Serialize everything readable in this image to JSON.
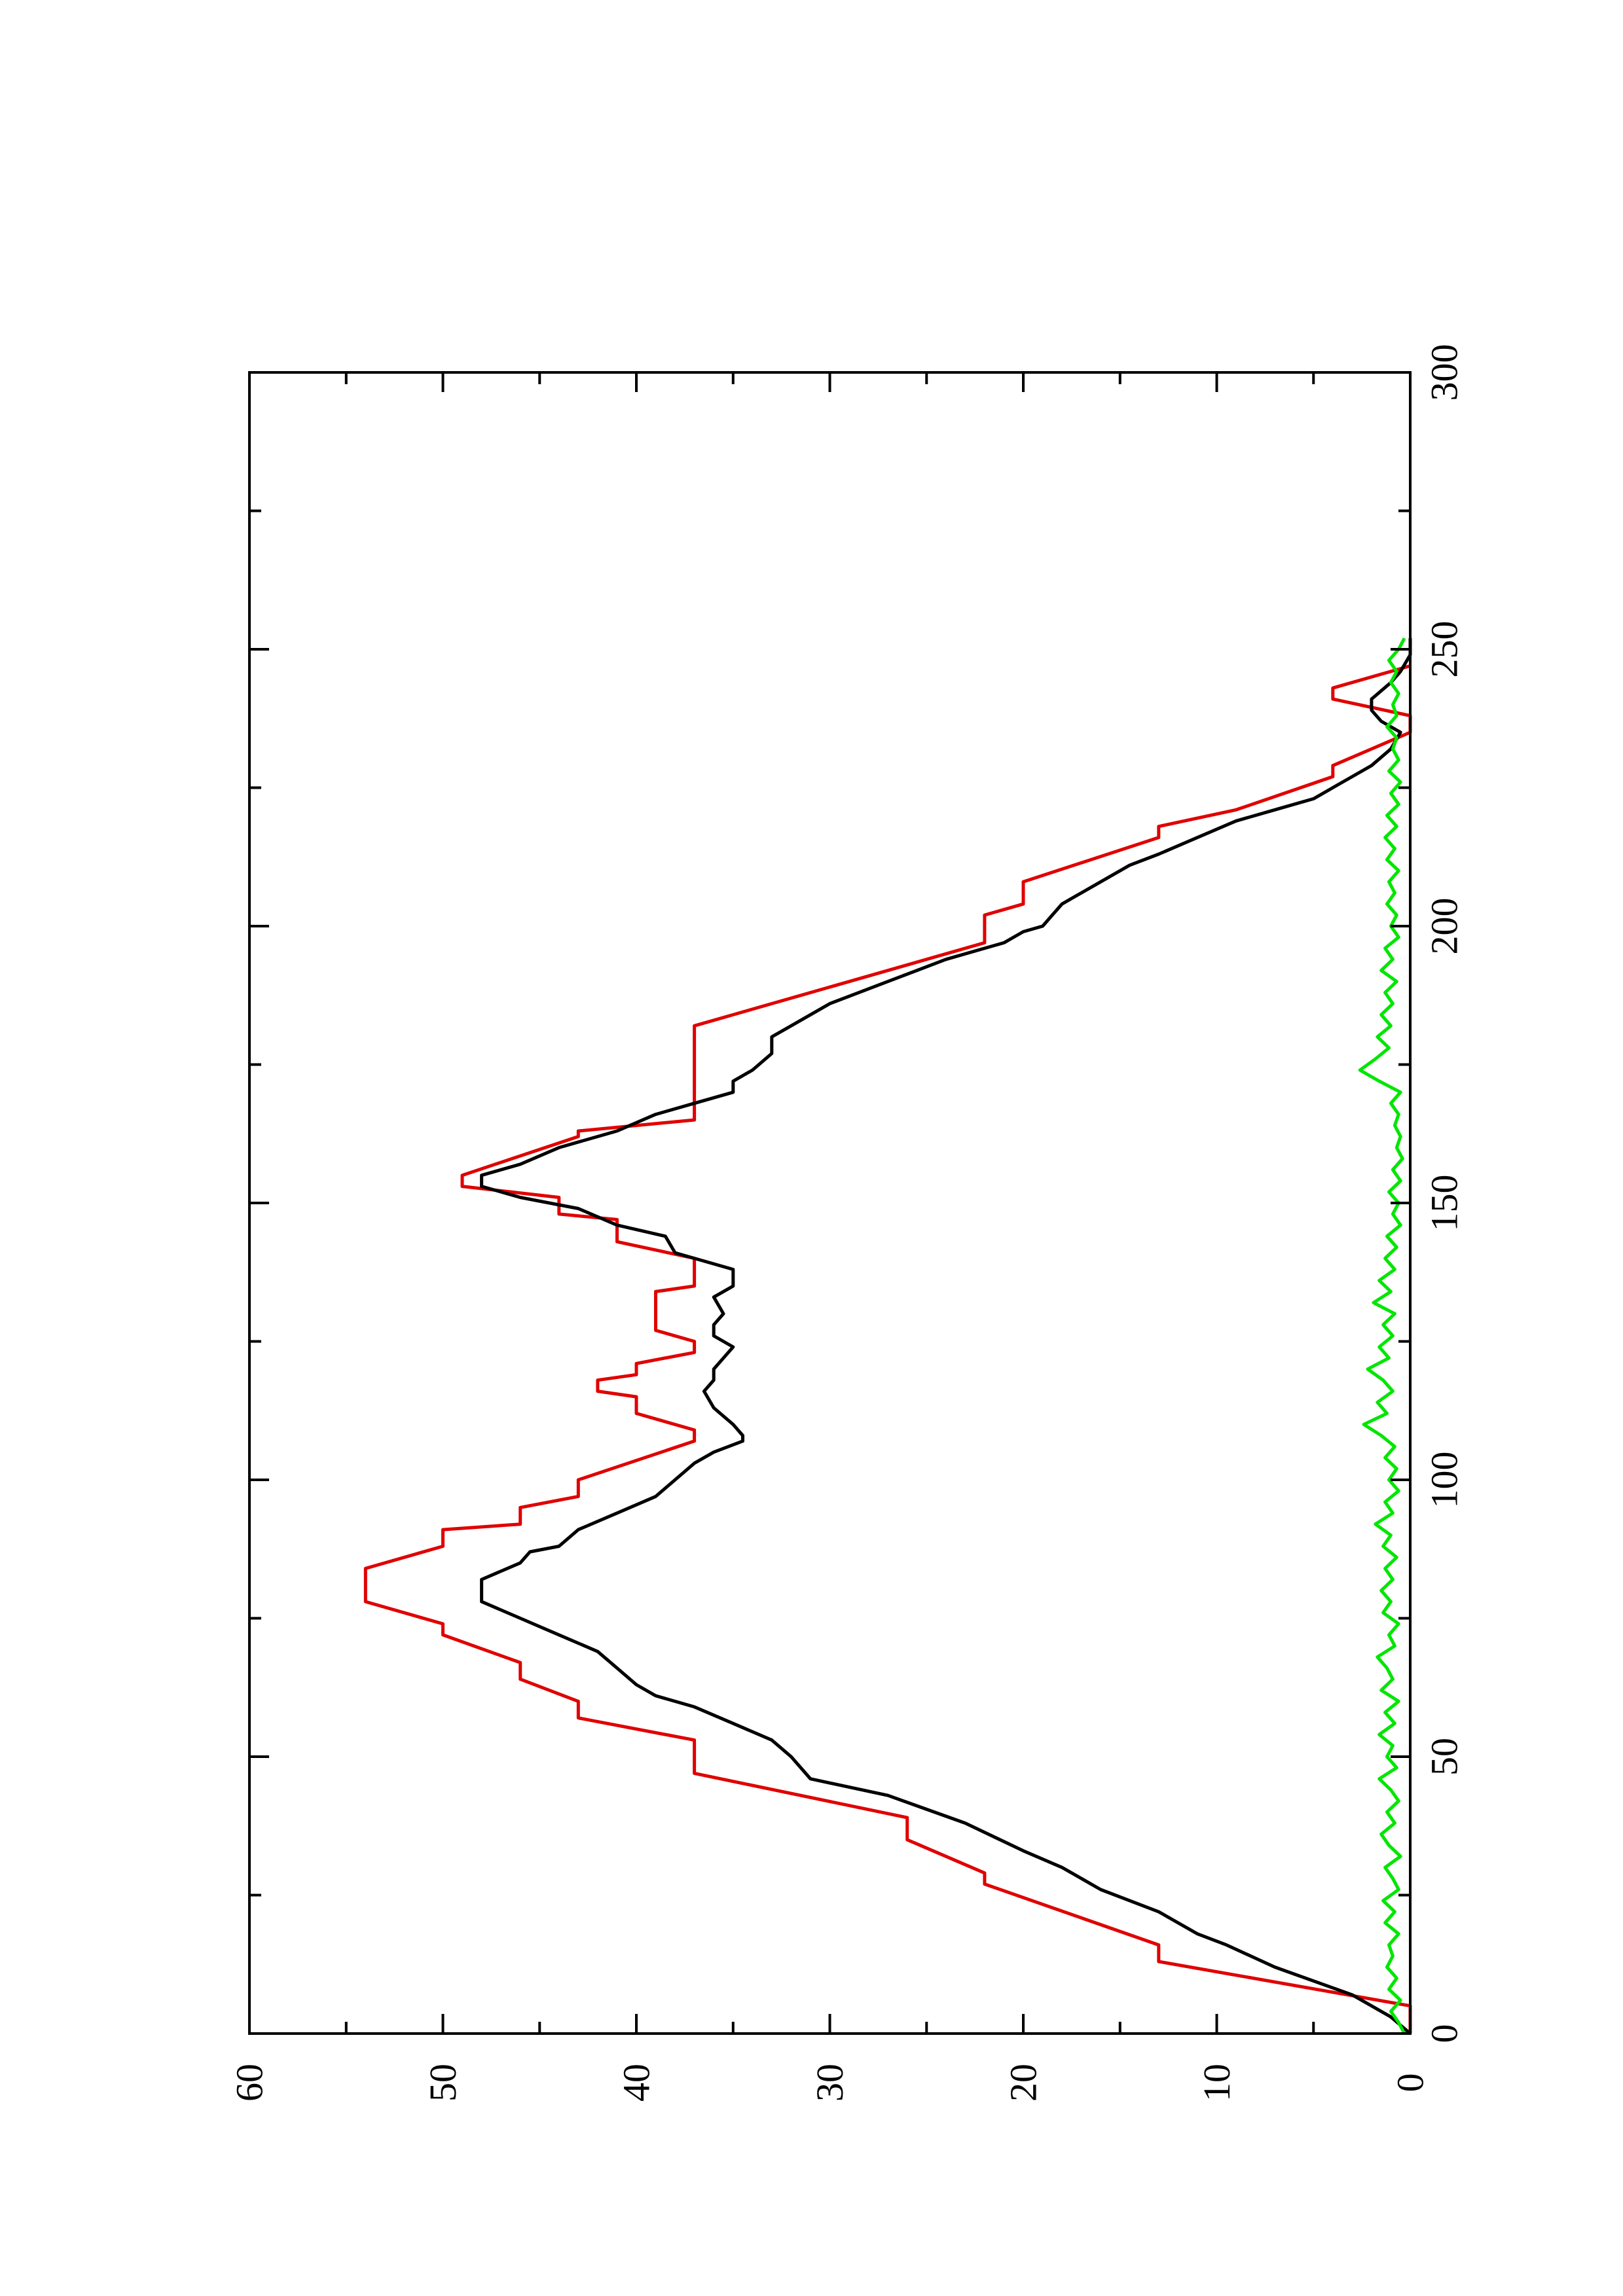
{
  "chart_data": {
    "type": "line",
    "orientation": "rotated-90-ccw",
    "xlim": [
      0,
      300
    ],
    "ylim": [
      0,
      60
    ],
    "x_ticks": [
      0,
      50,
      100,
      150,
      200,
      250,
      300
    ],
    "y_ticks": [
      0,
      10,
      20,
      30,
      40,
      50,
      60
    ],
    "x_tick_labels": [
      "0",
      "50",
      "100",
      "150",
      "200",
      "250",
      "300"
    ],
    "y_tick_labels": [
      "0",
      "10",
      "20",
      "30",
      "40",
      "50",
      "60"
    ],
    "grid": false,
    "title": "",
    "xlabel": "",
    "ylabel": "",
    "series": [
      {
        "color": "#e00000",
        "points": [
          [
            0,
            0
          ],
          [
            5,
            0
          ],
          [
            13,
            13
          ],
          [
            16,
            13
          ],
          [
            27,
            22
          ],
          [
            29,
            22
          ],
          [
            35,
            26
          ],
          [
            39,
            26
          ],
          [
            47,
            37
          ],
          [
            53,
            37
          ],
          [
            57,
            43
          ],
          [
            60,
            43
          ],
          [
            64,
            46
          ],
          [
            67,
            46
          ],
          [
            72,
            50
          ],
          [
            74,
            50
          ],
          [
            78,
            54
          ],
          [
            84,
            54
          ],
          [
            88,
            50
          ],
          [
            91,
            50
          ],
          [
            92,
            46
          ],
          [
            95,
            46
          ],
          [
            97,
            43
          ],
          [
            100,
            43
          ],
          [
            107,
            37
          ],
          [
            109,
            37
          ],
          [
            112,
            40
          ],
          [
            115,
            40
          ],
          [
            116,
            42
          ],
          [
            118,
            42
          ],
          [
            119,
            40
          ],
          [
            121,
            40
          ],
          [
            123,
            37
          ],
          [
            125,
            37
          ],
          [
            127,
            39
          ],
          [
            134,
            39
          ],
          [
            135,
            37
          ],
          [
            140,
            37
          ],
          [
            143,
            41
          ],
          [
            147,
            41
          ],
          [
            148,
            44
          ],
          [
            151,
            44
          ],
          [
            153,
            49
          ],
          [
            155,
            49
          ],
          [
            162,
            43
          ],
          [
            163,
            43
          ],
          [
            165,
            37
          ],
          [
            182,
            37
          ],
          [
            197,
            22
          ],
          [
            202,
            22
          ],
          [
            204,
            20
          ],
          [
            208,
            20
          ],
          [
            216,
            13
          ],
          [
            218,
            13
          ],
          [
            221,
            9
          ],
          [
            227,
            4
          ],
          [
            229,
            4
          ],
          [
            235,
            0
          ],
          [
            238,
            0
          ],
          [
            241,
            4
          ],
          [
            243,
            4
          ],
          [
            247,
            0
          ]
        ]
      },
      {
        "color": "#000000",
        "points": [
          [
            0,
            0
          ],
          [
            3,
            1
          ],
          [
            7,
            3
          ],
          [
            12,
            7
          ],
          [
            16,
            9.5
          ],
          [
            18,
            11
          ],
          [
            22,
            13
          ],
          [
            26,
            16
          ],
          [
            28,
            17
          ],
          [
            30,
            18
          ],
          [
            33,
            20
          ],
          [
            38,
            23
          ],
          [
            43,
            27
          ],
          [
            46,
            31
          ],
          [
            50,
            32
          ],
          [
            53,
            33
          ],
          [
            56,
            35
          ],
          [
            59,
            37
          ],
          [
            61,
            39
          ],
          [
            63,
            40
          ],
          [
            66,
            41
          ],
          [
            69,
            42
          ],
          [
            72,
            44
          ],
          [
            75,
            46
          ],
          [
            78,
            48
          ],
          [
            82,
            48
          ],
          [
            85,
            46
          ],
          [
            87,
            45.5
          ],
          [
            88,
            44
          ],
          [
            91,
            43
          ],
          [
            94,
            41
          ],
          [
            97,
            39
          ],
          [
            100,
            38
          ],
          [
            103,
            37
          ],
          [
            105,
            36
          ],
          [
            107,
            34.5
          ],
          [
            108,
            34.5
          ],
          [
            110,
            35
          ],
          [
            113,
            36
          ],
          [
            116,
            36.5
          ],
          [
            118,
            36
          ],
          [
            120,
            36
          ],
          [
            122,
            35.5
          ],
          [
            124,
            35
          ],
          [
            126,
            36
          ],
          [
            128,
            36
          ],
          [
            130,
            35.5
          ],
          [
            133,
            36
          ],
          [
            135,
            35
          ],
          [
            138,
            35
          ],
          [
            141,
            38
          ],
          [
            144,
            38.5
          ],
          [
            146,
            41
          ],
          [
            149,
            43
          ],
          [
            151,
            46
          ],
          [
            153,
            48
          ],
          [
            155,
            48
          ],
          [
            157,
            46
          ],
          [
            160,
            44
          ],
          [
            163,
            41
          ],
          [
            166,
            39
          ],
          [
            168,
            37
          ],
          [
            170,
            35
          ],
          [
            172,
            35
          ],
          [
            174,
            34
          ],
          [
            177,
            33
          ],
          [
            180,
            33
          ],
          [
            182,
            32
          ],
          [
            186,
            30
          ],
          [
            190,
            27
          ],
          [
            194,
            24
          ],
          [
            197,
            21
          ],
          [
            199,
            20
          ],
          [
            200,
            19
          ],
          [
            202,
            18.5
          ],
          [
            204,
            18
          ],
          [
            206,
            17
          ],
          [
            208,
            16
          ],
          [
            211,
            14.5
          ],
          [
            213,
            13
          ],
          [
            216,
            11
          ],
          [
            219,
            9
          ],
          [
            221,
            7
          ],
          [
            223,
            5
          ],
          [
            226,
            3.5
          ],
          [
            229,
            2
          ],
          [
            232,
            1
          ],
          [
            235,
            0.5
          ],
          [
            237,
            1.5
          ],
          [
            239,
            2
          ],
          [
            241,
            2
          ],
          [
            244,
            1
          ],
          [
            246,
            0.5
          ],
          [
            249,
            0
          ],
          [
            252,
            0
          ]
        ]
      },
      {
        "color": "#00e600",
        "points": [
          [
            0,
            0.3
          ],
          [
            2,
            0.6
          ],
          [
            4,
            1.0
          ],
          [
            6,
            0.5
          ],
          [
            8,
            1.1
          ],
          [
            10,
            0.7
          ],
          [
            12,
            1.2
          ],
          [
            14,
            0.9
          ],
          [
            16,
            1.1
          ],
          [
            18,
            0.6
          ],
          [
            20,
            1.3
          ],
          [
            22,
            0.8
          ],
          [
            24,
            1.4
          ],
          [
            26,
            0.6
          ],
          [
            28,
            0.9
          ],
          [
            30,
            1.3
          ],
          [
            32,
            0.5
          ],
          [
            34,
            1.1
          ],
          [
            36,
            1.5
          ],
          [
            38,
            0.8
          ],
          [
            40,
            1.2
          ],
          [
            42,
            0.6
          ],
          [
            44,
            1.0
          ],
          [
            46,
            1.6
          ],
          [
            48,
            0.7
          ],
          [
            50,
            1.2
          ],
          [
            52,
            0.9
          ],
          [
            54,
            1.6
          ],
          [
            56,
            0.8
          ],
          [
            58,
            1.3
          ],
          [
            60,
            0.6
          ],
          [
            62,
            1.5
          ],
          [
            64,
            0.9
          ],
          [
            66,
            1.2
          ],
          [
            68,
            1.7
          ],
          [
            70,
            0.8
          ],
          [
            72,
            1.1
          ],
          [
            74,
            0.6
          ],
          [
            76,
            1.4
          ],
          [
            78,
            1.0
          ],
          [
            80,
            1.5
          ],
          [
            82,
            0.9
          ],
          [
            84,
            1.3
          ],
          [
            86,
            0.7
          ],
          [
            88,
            1.4
          ],
          [
            90,
            1.0
          ],
          [
            92,
            1.8
          ],
          [
            94,
            0.9
          ],
          [
            96,
            1.3
          ],
          [
            98,
            0.6
          ],
          [
            100,
            1.1
          ],
          [
            102,
            0.7
          ],
          [
            104,
            1.3
          ],
          [
            106,
            0.8
          ],
          [
            108,
            1.5
          ],
          [
            110,
            2.4
          ],
          [
            112,
            1.2
          ],
          [
            114,
            1.7
          ],
          [
            116,
            0.9
          ],
          [
            118,
            1.4
          ],
          [
            120,
            2.2
          ],
          [
            122,
            1.1
          ],
          [
            124,
            1.6
          ],
          [
            126,
            0.9
          ],
          [
            128,
            1.4
          ],
          [
            130,
            0.8
          ],
          [
            132,
            1.9
          ],
          [
            134,
            1.0
          ],
          [
            136,
            1.6
          ],
          [
            138,
            0.8
          ],
          [
            140,
            1.3
          ],
          [
            142,
            0.7
          ],
          [
            144,
            1.2
          ],
          [
            146,
            0.5
          ],
          [
            148,
            0.9
          ],
          [
            150,
            0.6
          ],
          [
            152,
            1.1
          ],
          [
            154,
            0.5
          ],
          [
            156,
            0.9
          ],
          [
            158,
            0.4
          ],
          [
            160,
            0.7
          ],
          [
            162,
            0.5
          ],
          [
            164,
            0.8
          ],
          [
            166,
            0.6
          ],
          [
            168,
            1.0
          ],
          [
            170,
            0.5
          ],
          [
            172,
            1.6
          ],
          [
            174,
            2.6
          ],
          [
            176,
            1.8
          ],
          [
            178,
            1.1
          ],
          [
            180,
            1.7
          ],
          [
            182,
            1.0
          ],
          [
            184,
            1.5
          ],
          [
            186,
            0.9
          ],
          [
            188,
            1.3
          ],
          [
            190,
            0.7
          ],
          [
            192,
            1.5
          ],
          [
            194,
            0.9
          ],
          [
            196,
            1.3
          ],
          [
            198,
            0.6
          ],
          [
            200,
            1.0
          ],
          [
            202,
            0.7
          ],
          [
            204,
            1.2
          ],
          [
            206,
            0.8
          ],
          [
            208,
            1.1
          ],
          [
            210,
            0.6
          ],
          [
            212,
            1.2
          ],
          [
            214,
            0.8
          ],
          [
            216,
            1.3
          ],
          [
            218,
            0.7
          ],
          [
            220,
            1.2
          ],
          [
            222,
            0.6
          ],
          [
            224,
            1.0
          ],
          [
            226,
            0.5
          ],
          [
            228,
            1.1
          ],
          [
            230,
            0.6
          ],
          [
            232,
            0.9
          ],
          [
            234,
            0.7
          ],
          [
            236,
            1.2
          ],
          [
            238,
            0.7
          ],
          [
            240,
            0.9
          ],
          [
            242,
            0.6
          ],
          [
            244,
            1.0
          ],
          [
            246,
            0.7
          ],
          [
            248,
            1.1
          ],
          [
            250,
            0.6
          ],
          [
            252,
            0.3
          ]
        ]
      }
    ]
  }
}
